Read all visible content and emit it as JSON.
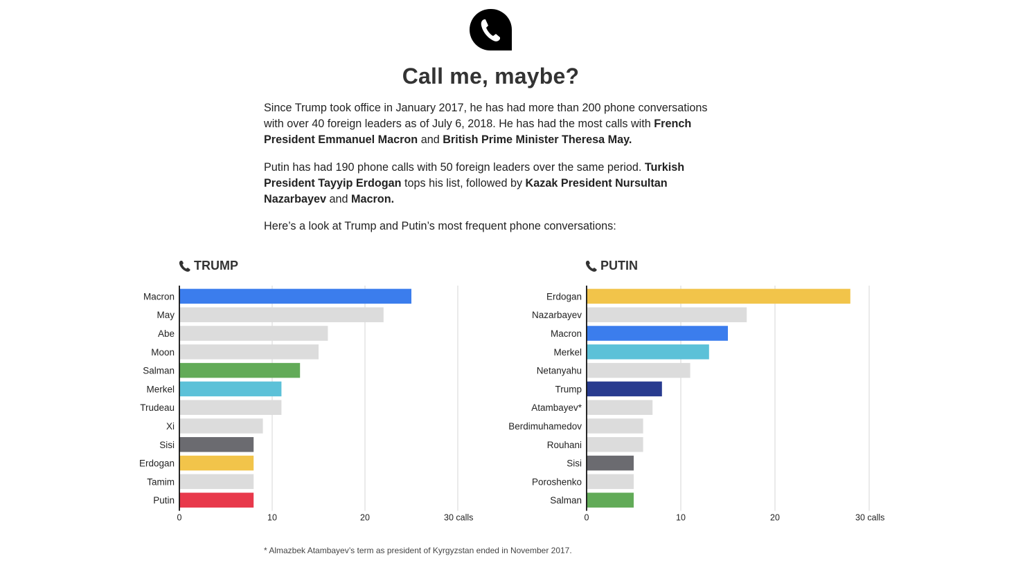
{
  "header": {
    "icon": "phone-icon",
    "title": "Call me, maybe?"
  },
  "intro": {
    "p1": [
      {
        "t": "Since Trump took office in January 2017, he has had more than 200 phone conversations with over 40 foreign leaders as of July 6, 2018. He has had the most calls with ",
        "b": false
      },
      {
        "t": "French President Emmanuel Macron",
        "b": true
      },
      {
        "t": " and ",
        "b": false
      },
      {
        "t": "British Prime Minister Theresa May.",
        "b": true
      }
    ],
    "p2": [
      {
        "t": "Putin has had 190 phone calls with 50 foreign leaders over the same period. ",
        "b": false
      },
      {
        "t": "Turkish President Tayyip Erdogan",
        "b": true
      },
      {
        "t": " tops his list, followed by ",
        "b": false
      },
      {
        "t": "Kazak President Nursultan Nazarbayev",
        "b": true
      },
      {
        "t": " and ",
        "b": false
      },
      {
        "t": "Macron.",
        "b": true
      }
    ],
    "p3": [
      {
        "t": "Here’s a look at Trump and Putin’s most frequent phone conversations:",
        "b": false
      }
    ]
  },
  "footnote": "* Almazbek Atambayev’s term as president of Kyrgyzstan ended in November 2017.",
  "chart_data": [
    {
      "type": "bar",
      "orientation": "horizontal",
      "title": "TRUMP",
      "title_icon": "phone-icon",
      "categories": [
        "Macron",
        "May",
        "Abe",
        "Moon",
        "Salman",
        "Merkel",
        "Trudeau",
        "Xi",
        "Sisi",
        "Erdogan",
        "Tamim",
        "Putin"
      ],
      "values": [
        25,
        22,
        16,
        15,
        13,
        11,
        11,
        9,
        8,
        8,
        8,
        8
      ],
      "colors": [
        "#3b7ded",
        "#dcdcdc",
        "#dcdcdc",
        "#dcdcdc",
        "#62ab58",
        "#5cc1d8",
        "#dcdcdc",
        "#dcdcdc",
        "#6b6b70",
        "#f2c44a",
        "#dcdcdc",
        "#e8394b"
      ],
      "xlim": [
        0,
        30
      ],
      "xticks": [
        0,
        10,
        20,
        30
      ],
      "xtick_labels": [
        "0",
        "10",
        "20",
        "30 calls"
      ],
      "grid": true
    },
    {
      "type": "bar",
      "orientation": "horizontal",
      "title": "PUTIN",
      "title_icon": "phone-icon",
      "categories": [
        "Erdogan",
        "Nazarbayev",
        "Macron",
        "Merkel",
        "Netanyahu",
        "Trump",
        "Atambayev*",
        "Berdimuhamedov",
        "Rouhani",
        "Sisi",
        "Poroshenko",
        "Salman"
      ],
      "values": [
        28,
        17,
        15,
        13,
        11,
        8,
        7,
        6,
        6,
        5,
        5,
        5
      ],
      "colors": [
        "#f2c44a",
        "#dcdcdc",
        "#3b7ded",
        "#5cc1d8",
        "#dcdcdc",
        "#283b8f",
        "#dcdcdc",
        "#dcdcdc",
        "#dcdcdc",
        "#6b6b70",
        "#dcdcdc",
        "#62ab58"
      ],
      "xlim": [
        0,
        30
      ],
      "xticks": [
        0,
        10,
        20,
        30
      ],
      "xtick_labels": [
        "0",
        "10",
        "20",
        "30 calls"
      ],
      "grid": true
    }
  ]
}
